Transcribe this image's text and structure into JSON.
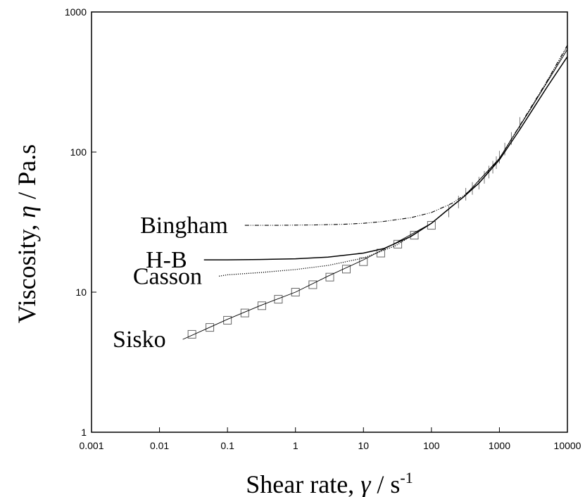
{
  "chart_data": {
    "type": "line",
    "title": "",
    "xlabel": "Shear rate, γ̇ / s⁻¹",
    "xlabel_parts": {
      "prefix": "Shear rate, ",
      "symbol": "γ",
      "mid": " / s",
      "sup": "-1"
    },
    "ylabel": "Viscosity, η / Pa.s",
    "ylabel_parts": {
      "prefix": "Viscosity, ",
      "symbol": "η",
      "suffix": " / Pa.s"
    },
    "xscale": "log",
    "yscale": "log",
    "xlim": [
      0.001,
      10000
    ],
    "ylim": [
      1,
      1000
    ],
    "x_ticks": [
      {
        "value": 0.001,
        "label": "0.001"
      },
      {
        "value": 0.01,
        "label": "0.01"
      },
      {
        "value": 0.1,
        "label": "0.1"
      },
      {
        "value": 1,
        "label": "1"
      },
      {
        "value": 10,
        "label": "10"
      },
      {
        "value": 100,
        "label": "100"
      },
      {
        "value": 1000,
        "label": "1000"
      },
      {
        "value": 10000,
        "label": "10000"
      }
    ],
    "y_ticks": [
      {
        "value": 1,
        "label": "1"
      },
      {
        "value": 10,
        "label": "10"
      },
      {
        "value": 100,
        "label": "100"
      },
      {
        "value": 1000,
        "label": "1000"
      }
    ],
    "grid": false,
    "legend": "none",
    "series": [
      {
        "name": "Bingham",
        "style": "dash-dot",
        "x": [
          0.18,
          0.5,
          1,
          2,
          5,
          10,
          20,
          50,
          100,
          200,
          300,
          500,
          1000,
          2000,
          5000,
          10000
        ],
        "y": [
          30,
          30,
          30.1,
          30.2,
          30.5,
          31,
          32,
          34,
          37,
          43,
          49,
          60,
          90,
          155,
          320,
          580
        ]
      },
      {
        "name": "H-B",
        "style": "solid",
        "x": [
          0.045,
          0.1,
          0.3,
          1,
          3,
          10,
          20,
          50,
          100,
          200,
          300,
          500,
          1000,
          2000,
          5000,
          10000
        ],
        "y": [
          17,
          17,
          17.1,
          17.3,
          17.8,
          19,
          20.5,
          25,
          31,
          41,
          48,
          60,
          88,
          145,
          290,
          480
        ]
      },
      {
        "name": "Casson",
        "style": "dotted",
        "x": [
          0.075,
          0.1,
          0.3,
          1,
          3,
          10,
          30,
          100,
          300,
          1000,
          3000,
          10000
        ],
        "y": [
          13,
          13.3,
          13.8,
          14.5,
          15.5,
          17.5,
          21.5,
          31,
          48,
          90,
          210,
          560
        ]
      },
      {
        "name": "Sisko",
        "style": "solid-thin",
        "x": [
          0.022,
          0.05,
          0.1,
          0.3,
          1,
          3,
          10,
          30,
          100,
          300,
          1000,
          3000,
          10000
        ],
        "y": [
          4.6,
          5.5,
          6.4,
          8,
          10,
          13,
          17,
          22.5,
          31,
          48,
          90,
          210,
          540
        ]
      }
    ],
    "markers": {
      "name": "data",
      "symbol": "square",
      "x": [
        0.03,
        0.055,
        0.1,
        0.18,
        0.32,
        0.56,
        1,
        1.8,
        3.2,
        5.6,
        10,
        18,
        32,
        56,
        100
      ],
      "y": [
        5,
        5.6,
        6.3,
        7.1,
        8,
        8.9,
        10,
        11.3,
        12.8,
        14.6,
        16.5,
        19,
        22,
        25.5,
        30
      ]
    },
    "error_bars": {
      "x": [
        180,
        250,
        320,
        400,
        500,
        600,
        700,
        800,
        900,
        1000,
        1200,
        1500,
        2000
      ],
      "y": [
        38,
        44,
        50,
        55,
        60,
        66,
        72,
        78,
        84,
        92,
        105,
        125,
        160
      ],
      "half_width_decades": 0.045
    }
  }
}
